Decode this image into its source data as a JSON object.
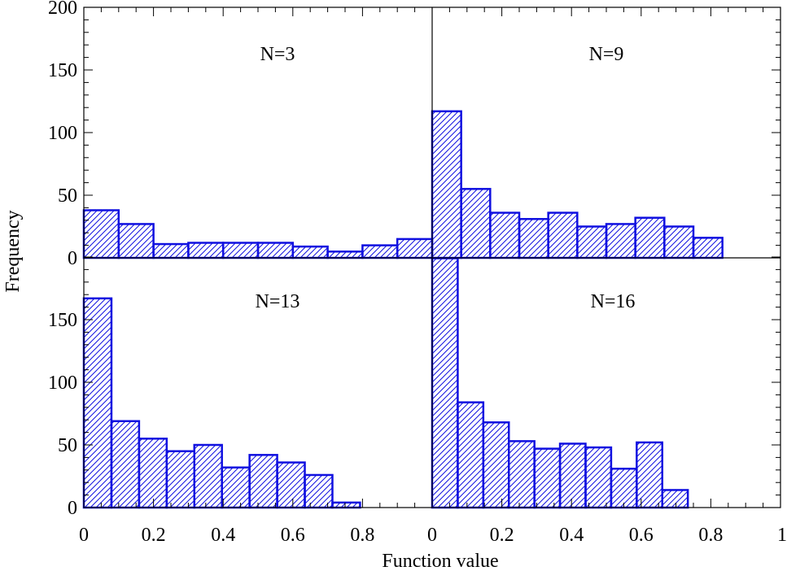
{
  "chart_data": [
    {
      "type": "bar",
      "panel": "top-left",
      "annotation": "N=3",
      "bin_width": 0.1,
      "bins": [
        0.0,
        0.1,
        0.2,
        0.3,
        0.4,
        0.5,
        0.6,
        0.7,
        0.8,
        0.9
      ],
      "values": [
        38,
        27,
        11,
        12,
        12,
        12,
        9,
        5,
        10,
        15
      ],
      "xlim": [
        0,
        1
      ],
      "ylim": [
        0,
        200
      ]
    },
    {
      "type": "bar",
      "panel": "top-right",
      "annotation": "N=9",
      "bin_width": 0.0833,
      "bins": [
        0.0,
        0.0833,
        0.1667,
        0.25,
        0.3333,
        0.4167,
        0.5,
        0.5833,
        0.6667,
        0.75
      ],
      "values": [
        117,
        55,
        36,
        31,
        36,
        25,
        27,
        32,
        25,
        16
      ],
      "xlim": [
        0,
        1
      ],
      "ylim": [
        0,
        200
      ]
    },
    {
      "type": "bar",
      "panel": "bottom-left",
      "annotation": "N=13",
      "bin_width": 0.0793,
      "bins": [
        0.0,
        0.0793,
        0.1586,
        0.2379,
        0.3172,
        0.3965,
        0.4758,
        0.5551,
        0.6344,
        0.7137
      ],
      "values": [
        167,
        69,
        55,
        45,
        50,
        32,
        42,
        36,
        26,
        4
      ],
      "xlim": [
        0,
        1
      ],
      "ylim": [
        0,
        200
      ]
    },
    {
      "type": "bar",
      "panel": "bottom-right",
      "annotation": "N=16",
      "bin_width": 0.0734,
      "bins": [
        0.0,
        0.0734,
        0.1468,
        0.2202,
        0.2936,
        0.367,
        0.4404,
        0.5138,
        0.5872,
        0.6606
      ],
      "values": [
        199,
        84,
        68,
        53,
        47,
        51,
        48,
        31,
        52,
        14
      ],
      "xlim": [
        0,
        1
      ],
      "ylim": [
        0,
        200
      ]
    }
  ],
  "axes": {
    "xlabel": "Function value",
    "ylabel": "Frequency",
    "x_ticks": [
      "0",
      "0.2",
      "0.4",
      "0.6",
      "0.8"
    ],
    "x_tick_last": "1",
    "y_ticks_top": [
      "0",
      "50",
      "100",
      "150",
      "200"
    ],
    "y_ticks_bottom": [
      "0",
      "50",
      "100",
      "150"
    ]
  },
  "style": {
    "bar_color": "#1010e0",
    "axis_color": "#000000"
  }
}
